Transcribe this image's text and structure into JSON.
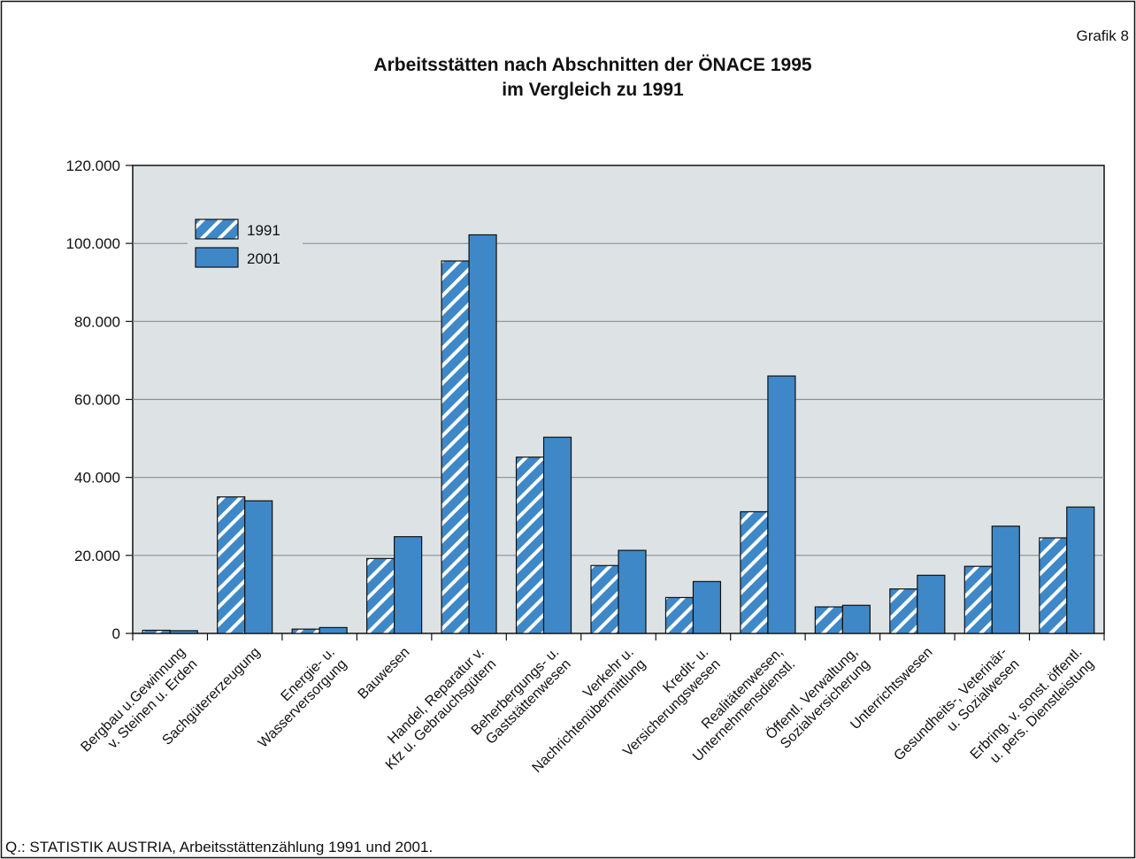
{
  "grafik_label": "Grafik 8",
  "source": "Q.: STATISTIK AUSTRIA, Arbeitsstättenzählung 1991 und 2001.",
  "colors": {
    "plot_bg": "#dde3e5",
    "bar_fill": "#3f88c8",
    "hatch_stripe": "#ffffff",
    "grid": "#8a9094",
    "axis": "#111111"
  },
  "chart_data": {
    "type": "bar",
    "title": [
      "Arbeitsstätten nach Abschnitten der ÖNACE 1995",
      "im Vergleich zu 1991"
    ],
    "xlabel": "",
    "ylabel": "",
    "ylim": [
      0,
      120000
    ],
    "yticks": [
      0,
      20000,
      40000,
      60000,
      80000,
      100000,
      120000
    ],
    "ytick_labels": [
      "0",
      "20.000",
      "40.000",
      "60.000",
      "80.000",
      "100.000",
      "120.000"
    ],
    "grid": true,
    "legend_position": "top-left",
    "categories": [
      [
        "Bergbau u.Gewinnung",
        "v. Steinen u. Erden"
      ],
      [
        "Sachgütererzeugung"
      ],
      [
        "Energie- u.",
        "Wasserversorgung"
      ],
      [
        "Bauwesen"
      ],
      [
        "Handel, Reparatur v.",
        "Kfz u. Gebrauchsgütern"
      ],
      [
        "Beherbergungs- u.",
        "Gaststättenwesen"
      ],
      [
        "Verkehr u.",
        "Nachrichtenübermittlung"
      ],
      [
        "Kredit- u.",
        "Versicherungswesen"
      ],
      [
        "Realitätenwesen,",
        "Unternehmensdienstl."
      ],
      [
        "Öffentl. Verwaltung,",
        "Sozialversicherung"
      ],
      [
        "Unterrichtswesen"
      ],
      [
        "Gesundheits-, Veterinär-",
        "u. Sozialwesen"
      ],
      [
        "Erbring. v. sonst. öffentl.",
        "u. pers. Dienstleistung"
      ]
    ],
    "series": [
      {
        "name": "1991",
        "pattern": "hatched",
        "values": [
          800,
          35000,
          1100,
          19200,
          95500,
          45200,
          17400,
          9200,
          31200,
          6800,
          11400,
          17200,
          24500
        ]
      },
      {
        "name": "2001",
        "pattern": "solid",
        "values": [
          700,
          34000,
          1500,
          24800,
          102200,
          50300,
          21300,
          13300,
          66000,
          7200,
          14900,
          27500,
          32400
        ]
      }
    ]
  }
}
